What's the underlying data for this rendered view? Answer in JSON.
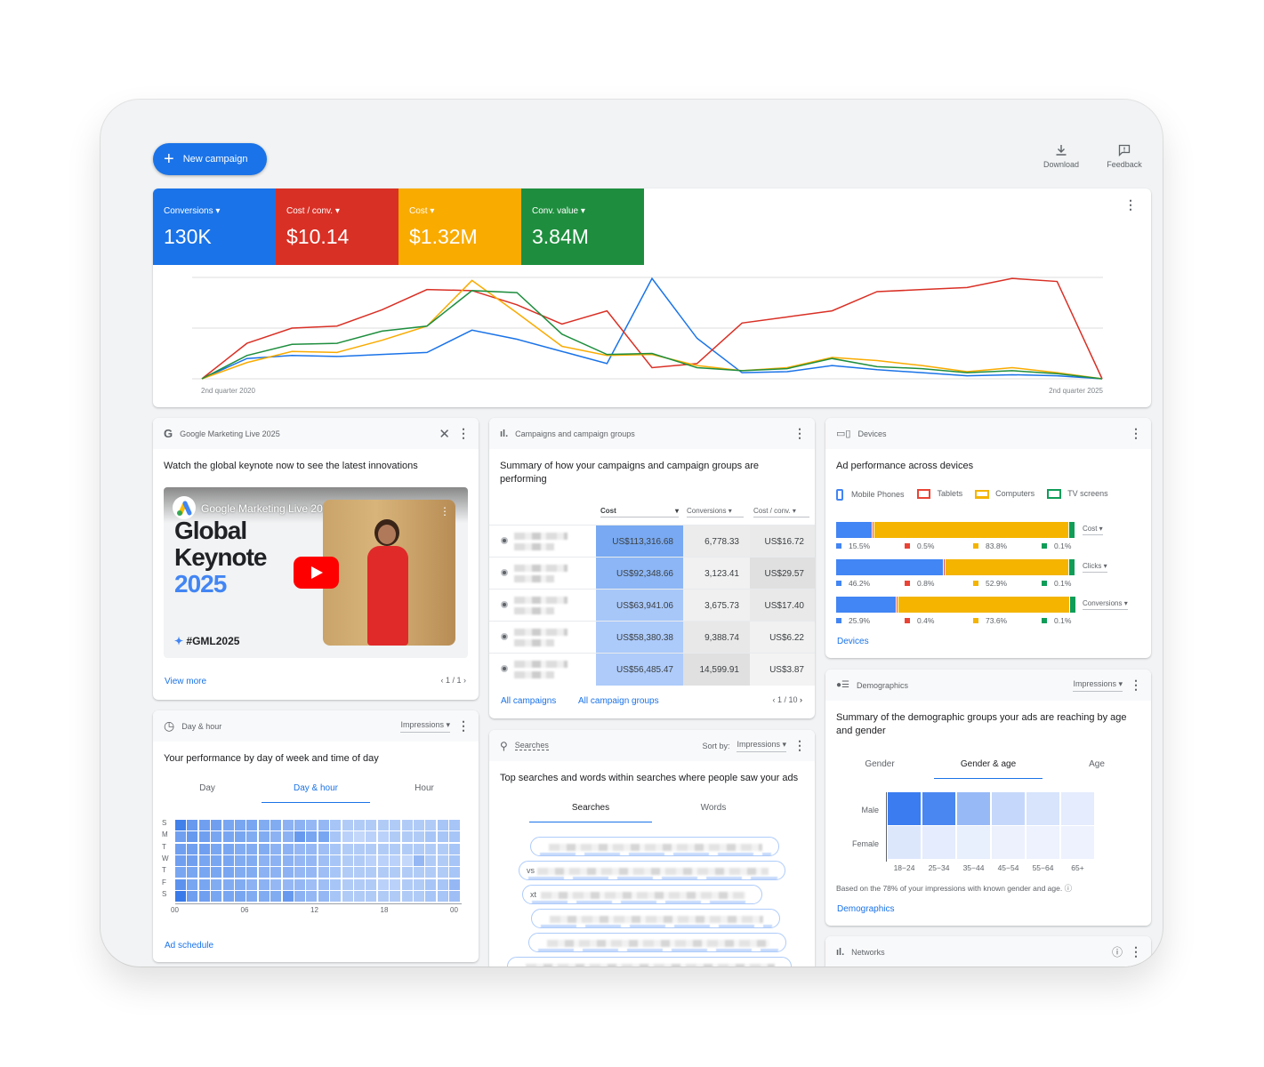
{
  "toolbar": {
    "new_campaign": "New campaign",
    "download": "Download",
    "feedback": "Feedback"
  },
  "metrics": [
    {
      "label": "Conversions",
      "value": "130K",
      "color": "#1a73e8"
    },
    {
      "label": "Cost / conv.",
      "value": "$10.14",
      "color": "#d93025"
    },
    {
      "label": "Cost",
      "value": "$1.32M",
      "color": "#f9ab00"
    },
    {
      "label": "Conv. value",
      "value": "3.84M",
      "color": "#1e8e3e"
    }
  ],
  "chart_data": {
    "type": "line",
    "x_start_label": "2nd quarter 2020",
    "x_end_label": "2nd quarter 2025",
    "grid": true,
    "y_scale": "relative (unlabeled)",
    "series": [
      {
        "metric": "Conversions",
        "color": "#1a73e8",
        "values": [
          0,
          20,
          23,
          22,
          24,
          26,
          48,
          39,
          27,
          15,
          99,
          40,
          6,
          7,
          13,
          9,
          6,
          3,
          4,
          3,
          0
        ]
      },
      {
        "metric": "Cost / conv.",
        "color": "#d93025",
        "values": [
          0,
          35,
          50,
          52,
          68,
          88,
          87,
          73,
          54,
          67,
          11,
          15,
          55,
          61,
          67,
          86,
          88,
          90,
          99,
          96,
          0
        ]
      },
      {
        "metric": "Cost",
        "color": "#f9ab00",
        "values": [
          0,
          16,
          27,
          26,
          38,
          52,
          97,
          65,
          32,
          23,
          24,
          13,
          8,
          11,
          21,
          18,
          13,
          7,
          11,
          6,
          0
        ]
      },
      {
        "metric": "Conv. value",
        "color": "#1e8e3e",
        "values": [
          0,
          23,
          34,
          35,
          47,
          52,
          87,
          85,
          44,
          24,
          25,
          11,
          8,
          10,
          20,
          12,
          10,
          6,
          8,
          5,
          0
        ]
      }
    ]
  },
  "gml": {
    "title": "Google Marketing Live 2025",
    "desc": "Watch the global keynote now to see the latest innovations",
    "video_title": "Google Marketing Live 2025",
    "thumb_line1": "Global",
    "thumb_line2": "Keynote",
    "thumb_year": "2025",
    "hashtag": "#GML2025",
    "view_more": "View more",
    "pager": "1 / 1"
  },
  "campaigns": {
    "title": "Campaigns and campaign groups",
    "desc": "Summary of how your campaigns and campaign groups are performing",
    "columns": [
      "Cost",
      "Conversions",
      "Cost / conv."
    ],
    "rows": [
      [
        "US$113,316.68",
        "6,778.33",
        "US$16.72"
      ],
      [
        "US$92,348.66",
        "3,123.41",
        "US$29.57"
      ],
      [
        "US$63,941.06",
        "3,675.73",
        "US$17.40"
      ],
      [
        "US$58,380.38",
        "9,388.74",
        "US$6.22"
      ],
      [
        "US$56,485.47",
        "14,599.91",
        "US$3.87"
      ]
    ],
    "link1": "All campaigns",
    "link2": "All campaign groups",
    "pager": "1 / 10"
  },
  "devices": {
    "title": "Devices",
    "desc": "Ad performance across devices",
    "legend": [
      "Mobile Phones",
      "Tablets",
      "Computers",
      "TV screens"
    ],
    "colors": [
      "#4285f4",
      "#ea4335",
      "#f4b400",
      "#0f9d58"
    ],
    "rows": [
      {
        "metric": "Cost",
        "values": [
          15.5,
          0.5,
          83.8,
          0.1
        ],
        "labels": [
          "15.5%",
          "0.5%",
          "83.8%",
          "0.1%"
        ]
      },
      {
        "metric": "Clicks",
        "values": [
          46.2,
          0.8,
          52.9,
          0.1
        ],
        "labels": [
          "46.2%",
          "0.8%",
          "52.9%",
          "0.1%"
        ]
      },
      {
        "metric": "Conversions",
        "values": [
          25.9,
          0.4,
          73.6,
          0.1
        ],
        "labels": [
          "25.9%",
          "0.4%",
          "73.6%",
          "0.1%"
        ]
      }
    ],
    "link": "Devices"
  },
  "dayhour": {
    "title": "Day & hour",
    "metric": "Impressions",
    "desc": "Your performance by day of week and time of day",
    "tabs": [
      "Day",
      "Day & hour",
      "Hour"
    ],
    "days": [
      "S",
      "M",
      "T",
      "W",
      "T",
      "F",
      "S"
    ],
    "hour_ticks": [
      "00",
      "06",
      "12",
      "18",
      "00"
    ],
    "intensity": [
      [
        0.9,
        0.7,
        0.65,
        0.65,
        0.6,
        0.6,
        0.6,
        0.55,
        0.55,
        0.5,
        0.5,
        0.45,
        0.45,
        0.35,
        0.3,
        0.3,
        0.3,
        0.3,
        0.3,
        0.3,
        0.3,
        0.3,
        0.35,
        0.35
      ],
      [
        0.65,
        0.7,
        0.65,
        0.6,
        0.6,
        0.6,
        0.55,
        0.55,
        0.5,
        0.5,
        0.7,
        0.6,
        0.6,
        0.35,
        0.25,
        0.2,
        0.25,
        0.25,
        0.3,
        0.3,
        0.3,
        0.35,
        0.35,
        0.35
      ],
      [
        0.65,
        0.65,
        0.65,
        0.6,
        0.6,
        0.55,
        0.55,
        0.55,
        0.5,
        0.5,
        0.45,
        0.45,
        0.4,
        0.35,
        0.3,
        0.3,
        0.3,
        0.3,
        0.3,
        0.3,
        0.3,
        0.3,
        0.3,
        0.35
      ],
      [
        0.65,
        0.65,
        0.6,
        0.6,
        0.6,
        0.55,
        0.55,
        0.5,
        0.5,
        0.5,
        0.45,
        0.45,
        0.4,
        0.35,
        0.3,
        0.3,
        0.25,
        0.25,
        0.25,
        0.2,
        0.45,
        0.3,
        0.3,
        0.35
      ],
      [
        0.6,
        0.6,
        0.6,
        0.6,
        0.6,
        0.55,
        0.55,
        0.5,
        0.5,
        0.5,
        0.45,
        0.45,
        0.4,
        0.35,
        0.3,
        0.3,
        0.3,
        0.3,
        0.3,
        0.3,
        0.3,
        0.3,
        0.3,
        0.35
      ],
      [
        0.75,
        0.6,
        0.6,
        0.55,
        0.55,
        0.55,
        0.5,
        0.5,
        0.45,
        0.45,
        0.45,
        0.4,
        0.4,
        0.35,
        0.3,
        0.3,
        0.3,
        0.25,
        0.25,
        0.3,
        0.3,
        0.35,
        0.35,
        0.45
      ],
      [
        0.95,
        0.65,
        0.65,
        0.6,
        0.6,
        0.6,
        0.55,
        0.55,
        0.55,
        0.7,
        0.5,
        0.45,
        0.45,
        0.35,
        0.3,
        0.3,
        0.3,
        0.3,
        0.3,
        0.3,
        0.3,
        0.35,
        0.35,
        0.4
      ]
    ],
    "link": "Ad schedule"
  },
  "searches": {
    "title": "Searches",
    "sort_label": "Sort by:",
    "sort_value": "Impressions",
    "desc": "Top searches and words within searches where people saw your ads",
    "tabs": [
      "Searches",
      "Words"
    ],
    "visible_fragments": [
      "vs",
      "xt"
    ]
  },
  "demographics": {
    "title": "Demographics",
    "metric": "Impressions",
    "desc": "Summary of the demographic groups your ads are reaching by age and gender",
    "tabs": [
      "Gender",
      "Gender & age",
      "Age"
    ],
    "genders": [
      "Male",
      "Female"
    ],
    "ages": [
      "18−24",
      "25−34",
      "35−44",
      "45−54",
      "55−64",
      "65+"
    ],
    "intensity": [
      [
        1,
        0.92,
        0.5,
        0.25,
        0.15,
        0.08
      ],
      [
        0.12,
        0.08,
        0.06,
        0.04,
        0.03,
        0.03
      ]
    ],
    "note": "Based on the 78% of your impressions with known gender and age.",
    "link": "Demographics"
  },
  "networks": {
    "title": "Networks"
  }
}
